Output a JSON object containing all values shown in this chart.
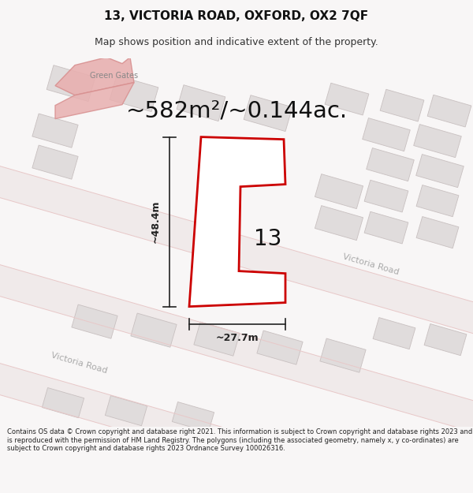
{
  "title": "13, VICTORIA ROAD, OXFORD, OX2 7QF",
  "subtitle": "Map shows position and indicative extent of the property.",
  "area_label": "~582m²/~0.144ac.",
  "width_label": "~27.7m",
  "height_label": "~48.4m",
  "number_label": "13",
  "green_gates_label": "Green Gates",
  "victoria_road_label_1": "Victoria Road",
  "victoria_road_label_2": "Victoria Road",
  "footer": "Contains OS data © Crown copyright and database right 2021. This information is subject to Crown copyright and database rights 2023 and is reproduced with the permission of HM Land Registry. The polygons (including the associated geometry, namely x, y co-ordinates) are subject to Crown copyright and database rights 2023 Ordnance Survey 100026316.",
  "map_bg": "#f8f6f6",
  "road_fill": "#f0eaea",
  "road_line": "#e8c8c8",
  "building_gray_fill": "#e0dcdc",
  "building_gray_ec": "#c8c0c0",
  "pink_fill": "#e8b0b0",
  "pink_ec": "#d89090",
  "plot_red": "#cc0000",
  "plot_fill": "#ffffff",
  "dim_color": "#222222",
  "label_gray": "#888888",
  "text_dark": "#111111"
}
